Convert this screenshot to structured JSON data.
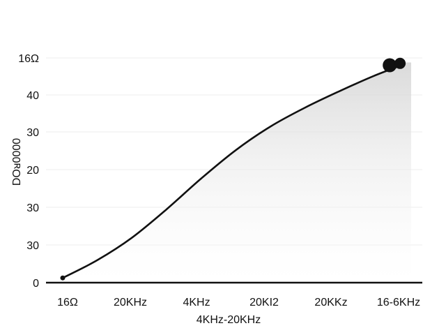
{
  "chart_data": {
    "type": "area",
    "title": "",
    "xlabel": "4KHz-20KHz",
    "ylabel": "DOᴚ0000",
    "categories": [
      "16Ω",
      "20KHz",
      "4KHz",
      "20KI2",
      "20KKz",
      "16-6KHz"
    ],
    "y_tick_labels": [
      "0",
      "30",
      "30",
      "20",
      "30",
      "40",
      "16Ω"
    ],
    "grid": true,
    "legend": "none",
    "line_color": "#111111",
    "fill_color": "#dcdcdc",
    "series": [
      {
        "x": [
          0,
          0.5,
          1,
          1.5,
          2,
          2.5,
          3,
          3.5,
          4,
          4.5,
          4.9
        ],
        "y": [
          0.2,
          0.95,
          1.9,
          3.1,
          4.4,
          5.6,
          6.6,
          7.4,
          8.1,
          8.75,
          9.2
        ],
        "markers": [
          {
            "x": 0,
            "y": 0.2,
            "size": "small"
          },
          {
            "x": 4.73,
            "y": 9.2,
            "size": "large"
          },
          {
            "x": 4.88,
            "y": 9.28,
            "size": "medium"
          }
        ]
      }
    ],
    "xlim": [
      0,
      5
    ],
    "ylim": [
      0,
      9.6
    ]
  }
}
